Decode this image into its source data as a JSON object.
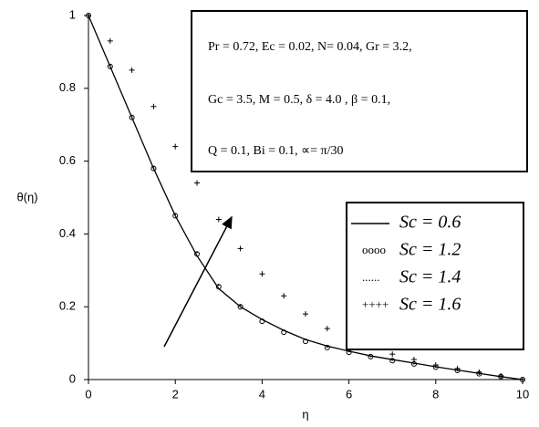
{
  "chart_data": {
    "type": "line",
    "xlabel": "η",
    "ylabel": "θ(η)",
    "annotations": [
      "Pr = 0.72, Ec = 0.02, N= 0.04, Gr = 3.2,",
      "Gc = 3.5, M = 0.5, δ = 4.0 , β = 0.1,",
      "Q = 0.1, Bi = 0.1, ∝= π/30"
    ],
    "x": [
      0,
      0.5,
      1,
      1.5,
      2,
      2.5,
      3,
      3.5,
      4,
      4.5,
      5,
      5.5,
      6,
      6.5,
      7,
      7.5,
      8,
      8.5,
      9,
      9.5,
      10
    ],
    "series": [
      {
        "name": "Sc = 0.6",
        "color": "#000000",
        "style": "line",
        "values": [
          1,
          0.86,
          0.72,
          0.58,
          0.45,
          0.34,
          0.25,
          0.2,
          0.165,
          0.135,
          0.11,
          0.092,
          0.078,
          0.065,
          0.055,
          0.045,
          0.035,
          0.026,
          0.017,
          0.008,
          0
        ]
      },
      {
        "name": "Sc = 1.2",
        "color": "#000000",
        "style": "circle",
        "legend_symbol": "oooo",
        "values": [
          1,
          0.86,
          0.72,
          0.58,
          0.45,
          0.345,
          0.255,
          0.2,
          0.16,
          0.13,
          0.105,
          0.088,
          0.075,
          0.063,
          0.052,
          0.043,
          0.034,
          0.025,
          0.016,
          0.008,
          0
        ]
      },
      {
        "name": "Sc = 1.4",
        "color": "#000000",
        "style": "dot",
        "legend_symbol": "......",
        "values": [
          1,
          0.865,
          0.725,
          0.585,
          0.455,
          0.35,
          0.26,
          0.205,
          0.165,
          0.135,
          0.11,
          0.09,
          0.077,
          0.064,
          0.054,
          0.044,
          0.035,
          0.026,
          0.017,
          0.008,
          0
        ]
      },
      {
        "name": "Sc = 1.6",
        "color": "#000000",
        "style": "plus",
        "legend_symbol": "++++",
        "values": [
          1,
          0.93,
          0.85,
          0.75,
          0.64,
          0.54,
          0.44,
          0.36,
          0.29,
          0.23,
          0.18,
          0.14,
          0.11,
          0.09,
          0.07,
          0.055,
          0.04,
          0.03,
          0.02,
          0.01,
          0
        ]
      }
    ],
    "xlim": [
      0,
      10
    ],
    "xticks": [
      0,
      2,
      4,
      6,
      8,
      10
    ],
    "ylim": [
      0,
      1
    ],
    "yticks": [
      0,
      0.2,
      0.4,
      0.6,
      0.8,
      1
    ]
  }
}
